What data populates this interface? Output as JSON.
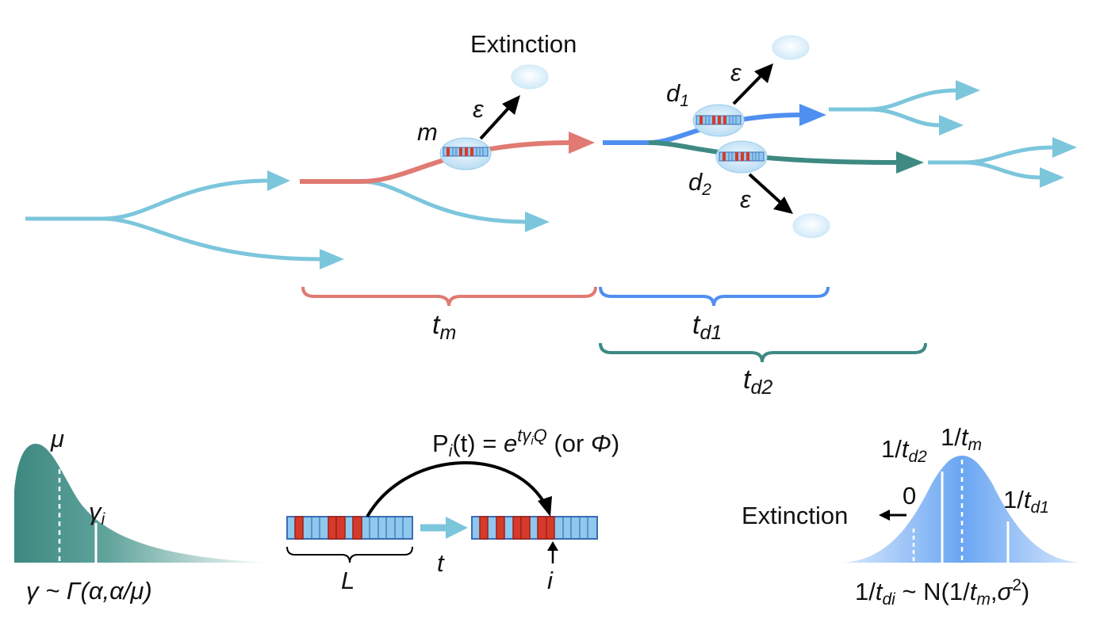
{
  "colors": {
    "lineage": "#7cc6dc",
    "mother": "#e07a72",
    "daughter1": "#4f8ff0",
    "daughter2": "#3e8a83",
    "cell_fill": "#b3dbf5",
    "tick_red": "#d63a2a",
    "tick_blue": "#8ec8ee",
    "gamma_dist": "#3d8880",
    "normal_dist": "#6aa6f2"
  },
  "labels": {
    "extinction_top": "Extinction",
    "epsilon": "ε",
    "m": "m",
    "d1_base": "d",
    "d1_sub": "1",
    "d2_base": "d",
    "d2_sub": "2",
    "t_base": "t",
    "tm_sub": "m",
    "td1_sub": "d1",
    "td2_sub": "d2"
  },
  "bottom_left": {
    "mu": "μ",
    "gamma_i_base": "γ",
    "gamma_i_sub": "i",
    "formula": "γ ~ Γ(α,α/μ)"
  },
  "bottom_middle": {
    "p_prefix": "P",
    "p_sub": "i",
    "p_mid": "(t) = ",
    "e": "e",
    "exp_t": "t",
    "exp_gamma": "γ",
    "exp_sub": "i",
    "exp_q": "Q",
    "or_open": " (or ",
    "phi": "Φ",
    "or_close": ")",
    "L": "L",
    "t": "t",
    "i": "i"
  },
  "bottom_right": {
    "one_over_tm_prefix": "1/",
    "one_over_tm_t": "t",
    "one_over_tm_sub": "m",
    "one_over_td2_prefix": "1/",
    "one_over_td2_t": "t",
    "one_over_td2_sub": "d2",
    "one_over_td1_prefix": "1/",
    "one_over_td1_t": "t",
    "one_over_td1_sub": "d1",
    "zero": "0",
    "extinction": "Extinction",
    "f_prefix": "1/",
    "f_t": "t",
    "f_sub": "di",
    "f_mid": " ~ N(1/",
    "f_t2": "t",
    "f_sub2": "m",
    "f_comma": ",",
    "f_sigma": "σ",
    "f_sup": "2",
    "f_close": ")"
  }
}
